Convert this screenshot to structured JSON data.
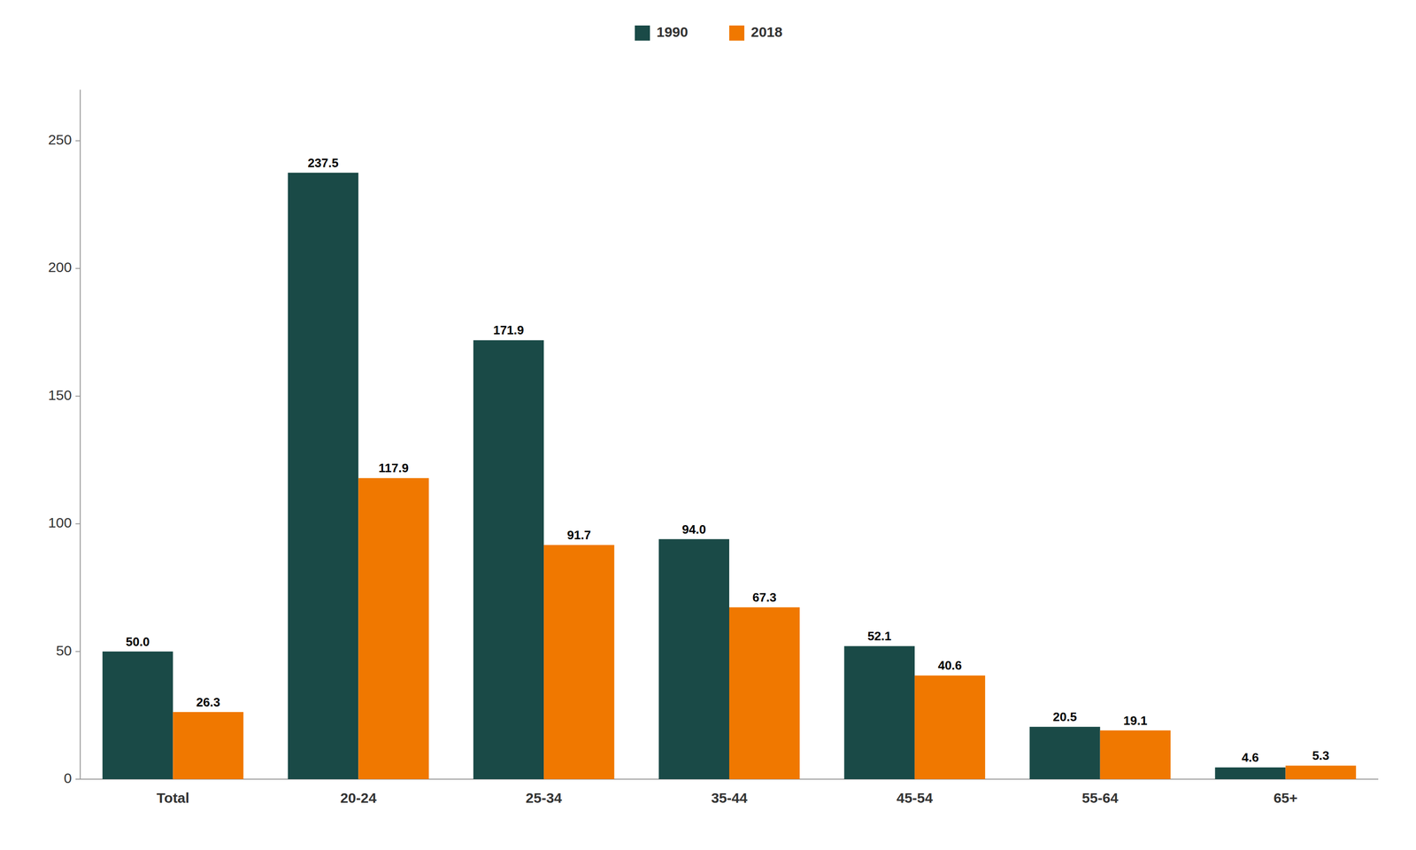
{
  "chart_data": {
    "type": "bar",
    "categories": [
      "Total",
      "20-24",
      "25-34",
      "35-44",
      "45-54",
      "55-64",
      "65+"
    ],
    "series": [
      {
        "name": "1990",
        "color": "#1a4a47",
        "values": [
          50.0,
          237.5,
          171.9,
          94.0,
          52.1,
          20.5,
          4.6
        ],
        "value_labels": [
          "50.0",
          "237.5",
          "171.9",
          "94.0",
          "52.1",
          "20.5",
          "4.6"
        ]
      },
      {
        "name": "2018",
        "color": "#f07800",
        "values": [
          26.3,
          117.9,
          91.7,
          67.3,
          40.6,
          19.1,
          5.3
        ],
        "value_labels": [
          "26.3",
          "117.9",
          "91.7",
          "67.3",
          "40.6",
          "19.1",
          "5.3"
        ]
      }
    ],
    "ylim": [
      0,
      270
    ],
    "yticks": [
      0,
      50,
      100,
      150,
      200,
      250
    ],
    "grid": false,
    "legend": "top",
    "data_labels": true
  }
}
